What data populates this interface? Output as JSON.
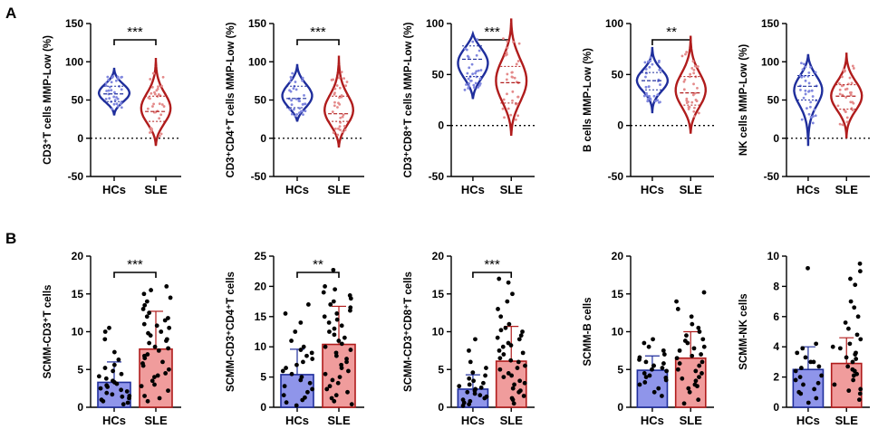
{
  "panel_labels": {
    "a": "A",
    "b": "B"
  },
  "colors": {
    "hc": "#1f2e9c",
    "sle": "#b01c1c",
    "hc_fill": "#8f95ea",
    "sle_fill": "#f09c9c",
    "hc_dot": "#7f86de",
    "sle_dot": "#e48a8a"
  },
  "chart_data": [
    {
      "type": "violin",
      "panel": "A",
      "ylabel": "CD3⁺T cells MMP-Low (%)",
      "ylim": [
        -50,
        150
      ],
      "yticks": [
        "-50",
        "0",
        "50",
        "100",
        "150"
      ],
      "yticks_values": [
        -50,
        0,
        50,
        100,
        150
      ],
      "categories": [
        "HCs",
        "SLE"
      ],
      "significance": "***",
      "series": [
        {
          "name": "HCs",
          "min": 30,
          "max": 92,
          "median": 58,
          "q1": 48,
          "q3": 68
        },
        {
          "name": "SLE",
          "min": -10,
          "max": 105,
          "median": 35,
          "q1": 22,
          "q3": 55
        }
      ]
    },
    {
      "type": "violin",
      "panel": "A",
      "ylabel": "CD3⁺CD4⁺T cells MMP-Low (%)",
      "ylim": [
        -50,
        150
      ],
      "yticks": [
        "-50",
        "0",
        "50",
        "100",
        "150"
      ],
      "yticks_values": [
        -50,
        0,
        50,
        100,
        150
      ],
      "categories": [
        "HCs",
        "SLE"
      ],
      "significance": "***",
      "series": [
        {
          "name": "HCs",
          "min": 22,
          "max": 97,
          "median": 52,
          "q1": 40,
          "q3": 68
        },
        {
          "name": "SLE",
          "min": -12,
          "max": 108,
          "median": 32,
          "q1": 22,
          "q3": 55
        }
      ]
    },
    {
      "type": "violin",
      "panel": "A",
      "ylabel": "CD3⁺CD8⁺T cells MMP-Low (%)",
      "ylim": [
        -50,
        100
      ],
      "yticks": [
        "-50",
        "0",
        "50",
        "100"
      ],
      "yticks_values": [
        -50,
        0,
        50,
        100
      ],
      "categories": [
        "HCs",
        "SLE"
      ],
      "significance": "***",
      "series": [
        {
          "name": "HCs",
          "min": 26,
          "max": 90,
          "median": 65,
          "q1": 48,
          "q3": 78
        },
        {
          "name": "SLE",
          "min": -10,
          "max": 105,
          "median": 42,
          "q1": 22,
          "q3": 58
        }
      ]
    },
    {
      "type": "violin",
      "panel": "A",
      "ylabel": "B cells MMP-Low (%)",
      "ylim": [
        -50,
        100
      ],
      "yticks": [
        "-50",
        "0",
        "50",
        "100"
      ],
      "yticks_values": [
        -50,
        0,
        50,
        100
      ],
      "categories": [
        "HCs",
        "SLE"
      ],
      "significance": "**",
      "series": [
        {
          "name": "HCs",
          "min": 12,
          "max": 77,
          "median": 44,
          "q1": 35,
          "q3": 52
        },
        {
          "name": "SLE",
          "min": -8,
          "max": 88,
          "median": 32,
          "q1": 20,
          "q3": 48
        }
      ]
    },
    {
      "type": "violin",
      "panel": "A",
      "ylabel": "NK cells MMP-Low (%)",
      "ylim": [
        -50,
        150
      ],
      "yticks": [
        "-50",
        "0",
        "50",
        "100",
        "150"
      ],
      "yticks_values": [
        -50,
        0,
        50,
        100,
        150
      ],
      "categories": [
        "HCs",
        "SLE"
      ],
      "significance": "",
      "series": [
        {
          "name": "HCs",
          "min": -10,
          "max": 110,
          "median": 68,
          "q1": 50,
          "q3": 82
        },
        {
          "name": "SLE",
          "min": 0,
          "max": 112,
          "median": 55,
          "q1": 38,
          "q3": 70
        }
      ]
    },
    {
      "type": "bar",
      "panel": "B",
      "ylabel": "SCMM-CD3⁺T cells",
      "ylim": [
        0,
        20
      ],
      "yticks": [
        "0",
        "5",
        "10",
        "15",
        "20"
      ],
      "yticks_values": [
        0,
        5,
        10,
        15,
        20
      ],
      "categories": [
        "HCs",
        "SLE"
      ],
      "significance": "***",
      "series": [
        {
          "name": "HCs",
          "mean": 3.3,
          "sd": 2.7,
          "points": [
            0.4,
            0.6,
            0.8,
            1.0,
            1.2,
            1.4,
            1.5,
            1.7,
            1.9,
            2.1,
            2.3,
            2.5,
            2.7,
            2.9,
            3.1,
            3.3,
            3.5,
            3.8,
            4.1,
            4.4,
            4.8,
            5.2,
            5.6,
            6.3,
            7.3,
            9.0,
            10.0,
            10.5
          ]
        },
        {
          "name": "SLE",
          "mean": 7.7,
          "sd": 5.0,
          "points": [
            0.8,
            1.5,
            2.2,
            3.0,
            3.5,
            4.0,
            4.5,
            5.0,
            5.5,
            6.0,
            6.5,
            7.0,
            7.5,
            8.0,
            8.5,
            9.0,
            9.5,
            10.0,
            10.5,
            11.0,
            11.5,
            12.0,
            12.5,
            13.0,
            13.5,
            14.0,
            14.5,
            15.0,
            15.5,
            16.0,
            4.2,
            5.8,
            6.8,
            7.8,
            8.8,
            9.8,
            10.8,
            2.8,
            1.2,
            11.8
          ]
        }
      ]
    },
    {
      "type": "bar",
      "panel": "B",
      "ylabel": "SCMM-CD3⁺CD4⁺T cells",
      "ylim": [
        0,
        25
      ],
      "yticks": [
        "0",
        "5",
        "10",
        "15",
        "20",
        "25"
      ],
      "yticks_values": [
        0,
        5,
        10,
        15,
        20,
        25
      ],
      "categories": [
        "HCs",
        "SLE"
      ],
      "significance": "**",
      "series": [
        {
          "name": "HCs",
          "mean": 5.4,
          "sd": 4.2,
          "points": [
            0.3,
            0.8,
            1.2,
            1.6,
            2.0,
            2.5,
            3.0,
            3.5,
            4.0,
            4.5,
            5.0,
            5.5,
            6.0,
            6.5,
            7.0,
            7.5,
            8.0,
            8.5,
            9.0,
            9.5,
            10.0,
            11.0,
            12.5,
            14.0,
            15.5,
            17.0
          ]
        },
        {
          "name": "SLE",
          "mean": 10.4,
          "sd": 6.3,
          "points": [
            0.5,
            1.0,
            2.0,
            3.0,
            4.0,
            5.0,
            6.0,
            7.0,
            8.0,
            9.0,
            10.0,
            11.0,
            12.0,
            13.0,
            14.0,
            15.0,
            16.0,
            17.0,
            18.0,
            19.0,
            20.0,
            22.7,
            3.5,
            5.5,
            7.5,
            9.5,
            11.5,
            13.5,
            15.5,
            17.5,
            1.5,
            4.5,
            8.5,
            12.5,
            16.5,
            19.5,
            2.5,
            6.5,
            10.5,
            14.5,
            18.5
          ]
        }
      ]
    },
    {
      "type": "bar",
      "panel": "B",
      "ylabel": "SCMM-CD3⁺CD8⁺T cells",
      "ylim": [
        0,
        20
      ],
      "yticks": [
        "0",
        "5",
        "10",
        "15",
        "20"
      ],
      "yticks_values": [
        0,
        5,
        10,
        15,
        20
      ],
      "categories": [
        "HCs",
        "SLE"
      ],
      "significance": "***",
      "series": [
        {
          "name": "HCs",
          "mean": 2.4,
          "sd": 1.9,
          "points": [
            0.2,
            0.4,
            0.6,
            0.8,
            1.0,
            1.2,
            1.4,
            1.6,
            1.8,
            2.0,
            2.2,
            2.4,
            2.6,
            2.8,
            3.0,
            3.2,
            3.5,
            3.8,
            4.2,
            4.6,
            5.2,
            6.0,
            7.5,
            9.0
          ]
        },
        {
          "name": "SLE",
          "mean": 6.1,
          "sd": 4.6,
          "points": [
            0.5,
            1.0,
            1.5,
            2.0,
            2.5,
            3.0,
            3.5,
            4.0,
            4.5,
            5.0,
            5.5,
            6.0,
            6.5,
            7.0,
            7.5,
            8.0,
            8.5,
            9.0,
            9.5,
            10.0,
            10.5,
            11.0,
            12.0,
            13.0,
            14.0,
            15.0,
            16.5,
            17.0,
            1.2,
            2.2,
            3.2,
            4.2,
            5.2,
            6.2,
            7.2,
            8.2,
            9.2,
            10.2
          ]
        }
      ]
    },
    {
      "type": "bar",
      "panel": "B",
      "ylabel": "SCMM-B cells",
      "ylim": [
        0,
        20
      ],
      "yticks": [
        "0",
        "5",
        "10",
        "15",
        "20"
      ],
      "yticks_values": [
        0,
        5,
        10,
        15,
        20
      ],
      "categories": [
        "HCs",
        "SLE"
      ],
      "significance": "",
      "series": [
        {
          "name": "HCs",
          "mean": 4.9,
          "sd": 1.9,
          "points": [
            1.5,
            2.0,
            2.5,
            3.0,
            3.3,
            3.6,
            3.9,
            4.2,
            4.5,
            4.8,
            5.0,
            5.2,
            5.5,
            5.8,
            6.0,
            6.3,
            6.6,
            7.0,
            7.5,
            8.0,
            8.5,
            9.0,
            4.0,
            5.5
          ]
        },
        {
          "name": "SLE",
          "mean": 6.5,
          "sd": 3.5,
          "points": [
            0.5,
            1.0,
            2.0,
            2.5,
            3.0,
            3.5,
            4.0,
            4.5,
            5.0,
            5.5,
            6.0,
            6.5,
            7.0,
            7.5,
            8.0,
            8.5,
            9.0,
            9.5,
            10.0,
            10.5,
            11.0,
            12.0,
            13.0,
            14.0,
            15.2,
            3.8,
            5.8,
            6.8,
            7.8,
            8.8,
            4.8,
            2.8
          ]
        }
      ]
    },
    {
      "type": "bar",
      "panel": "B",
      "ylabel": "SCMM-NK cells",
      "ylim": [
        0,
        10
      ],
      "yticks": [
        "0",
        "2",
        "4",
        "6",
        "8",
        "10"
      ],
      "yticks_values": [
        0,
        2,
        4,
        6,
        8,
        10
      ],
      "categories": [
        "HCs",
        "SLE"
      ],
      "significance": "",
      "series": [
        {
          "name": "HCs",
          "mean": 2.5,
          "sd": 1.5,
          "points": [
            0.3,
            0.6,
            0.9,
            1.2,
            1.5,
            1.8,
            2.1,
            2.4,
            2.7,
            3.0,
            3.3,
            3.6,
            3.9,
            4.2,
            1.0,
            2.0,
            3.0,
            9.2,
            1.6,
            2.6
          ]
        },
        {
          "name": "SLE",
          "mean": 2.9,
          "sd": 1.7,
          "points": [
            0.5,
            0.9,
            1.2,
            1.5,
            1.8,
            2.1,
            2.4,
            2.7,
            3.0,
            3.3,
            3.6,
            3.9,
            4.2,
            4.5,
            4.8,
            5.2,
            5.6,
            6.0,
            6.6,
            7.0,
            8.1,
            8.5,
            9.0,
            9.5,
            1.1,
            2.2,
            3.2,
            4.0,
            2.5,
            3.5
          ]
        }
      ]
    }
  ]
}
